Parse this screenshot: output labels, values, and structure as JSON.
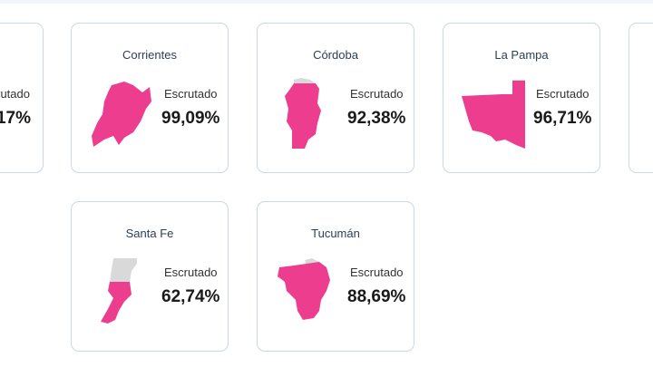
{
  "label": "Escrutado",
  "colors": {
    "counted": "#ec3d8e",
    "uncounted": "#d9d9d9"
  },
  "cards": [
    {
      "name": "",
      "percent": "17%"
    },
    {
      "name": "Corrientes",
      "percent": "99,09%",
      "counted": 0.9909
    },
    {
      "name": "Córdoba",
      "percent": "92,38%",
      "counted": 0.9238
    },
    {
      "name": "La Pampa",
      "percent": "96,71%",
      "counted": 0.9671
    },
    {
      "name": "Santa Fe",
      "percent": "62,74%",
      "counted": 0.6274
    },
    {
      "name": "Tucumán",
      "percent": "88,69%",
      "counted": 0.8869
    }
  ]
}
